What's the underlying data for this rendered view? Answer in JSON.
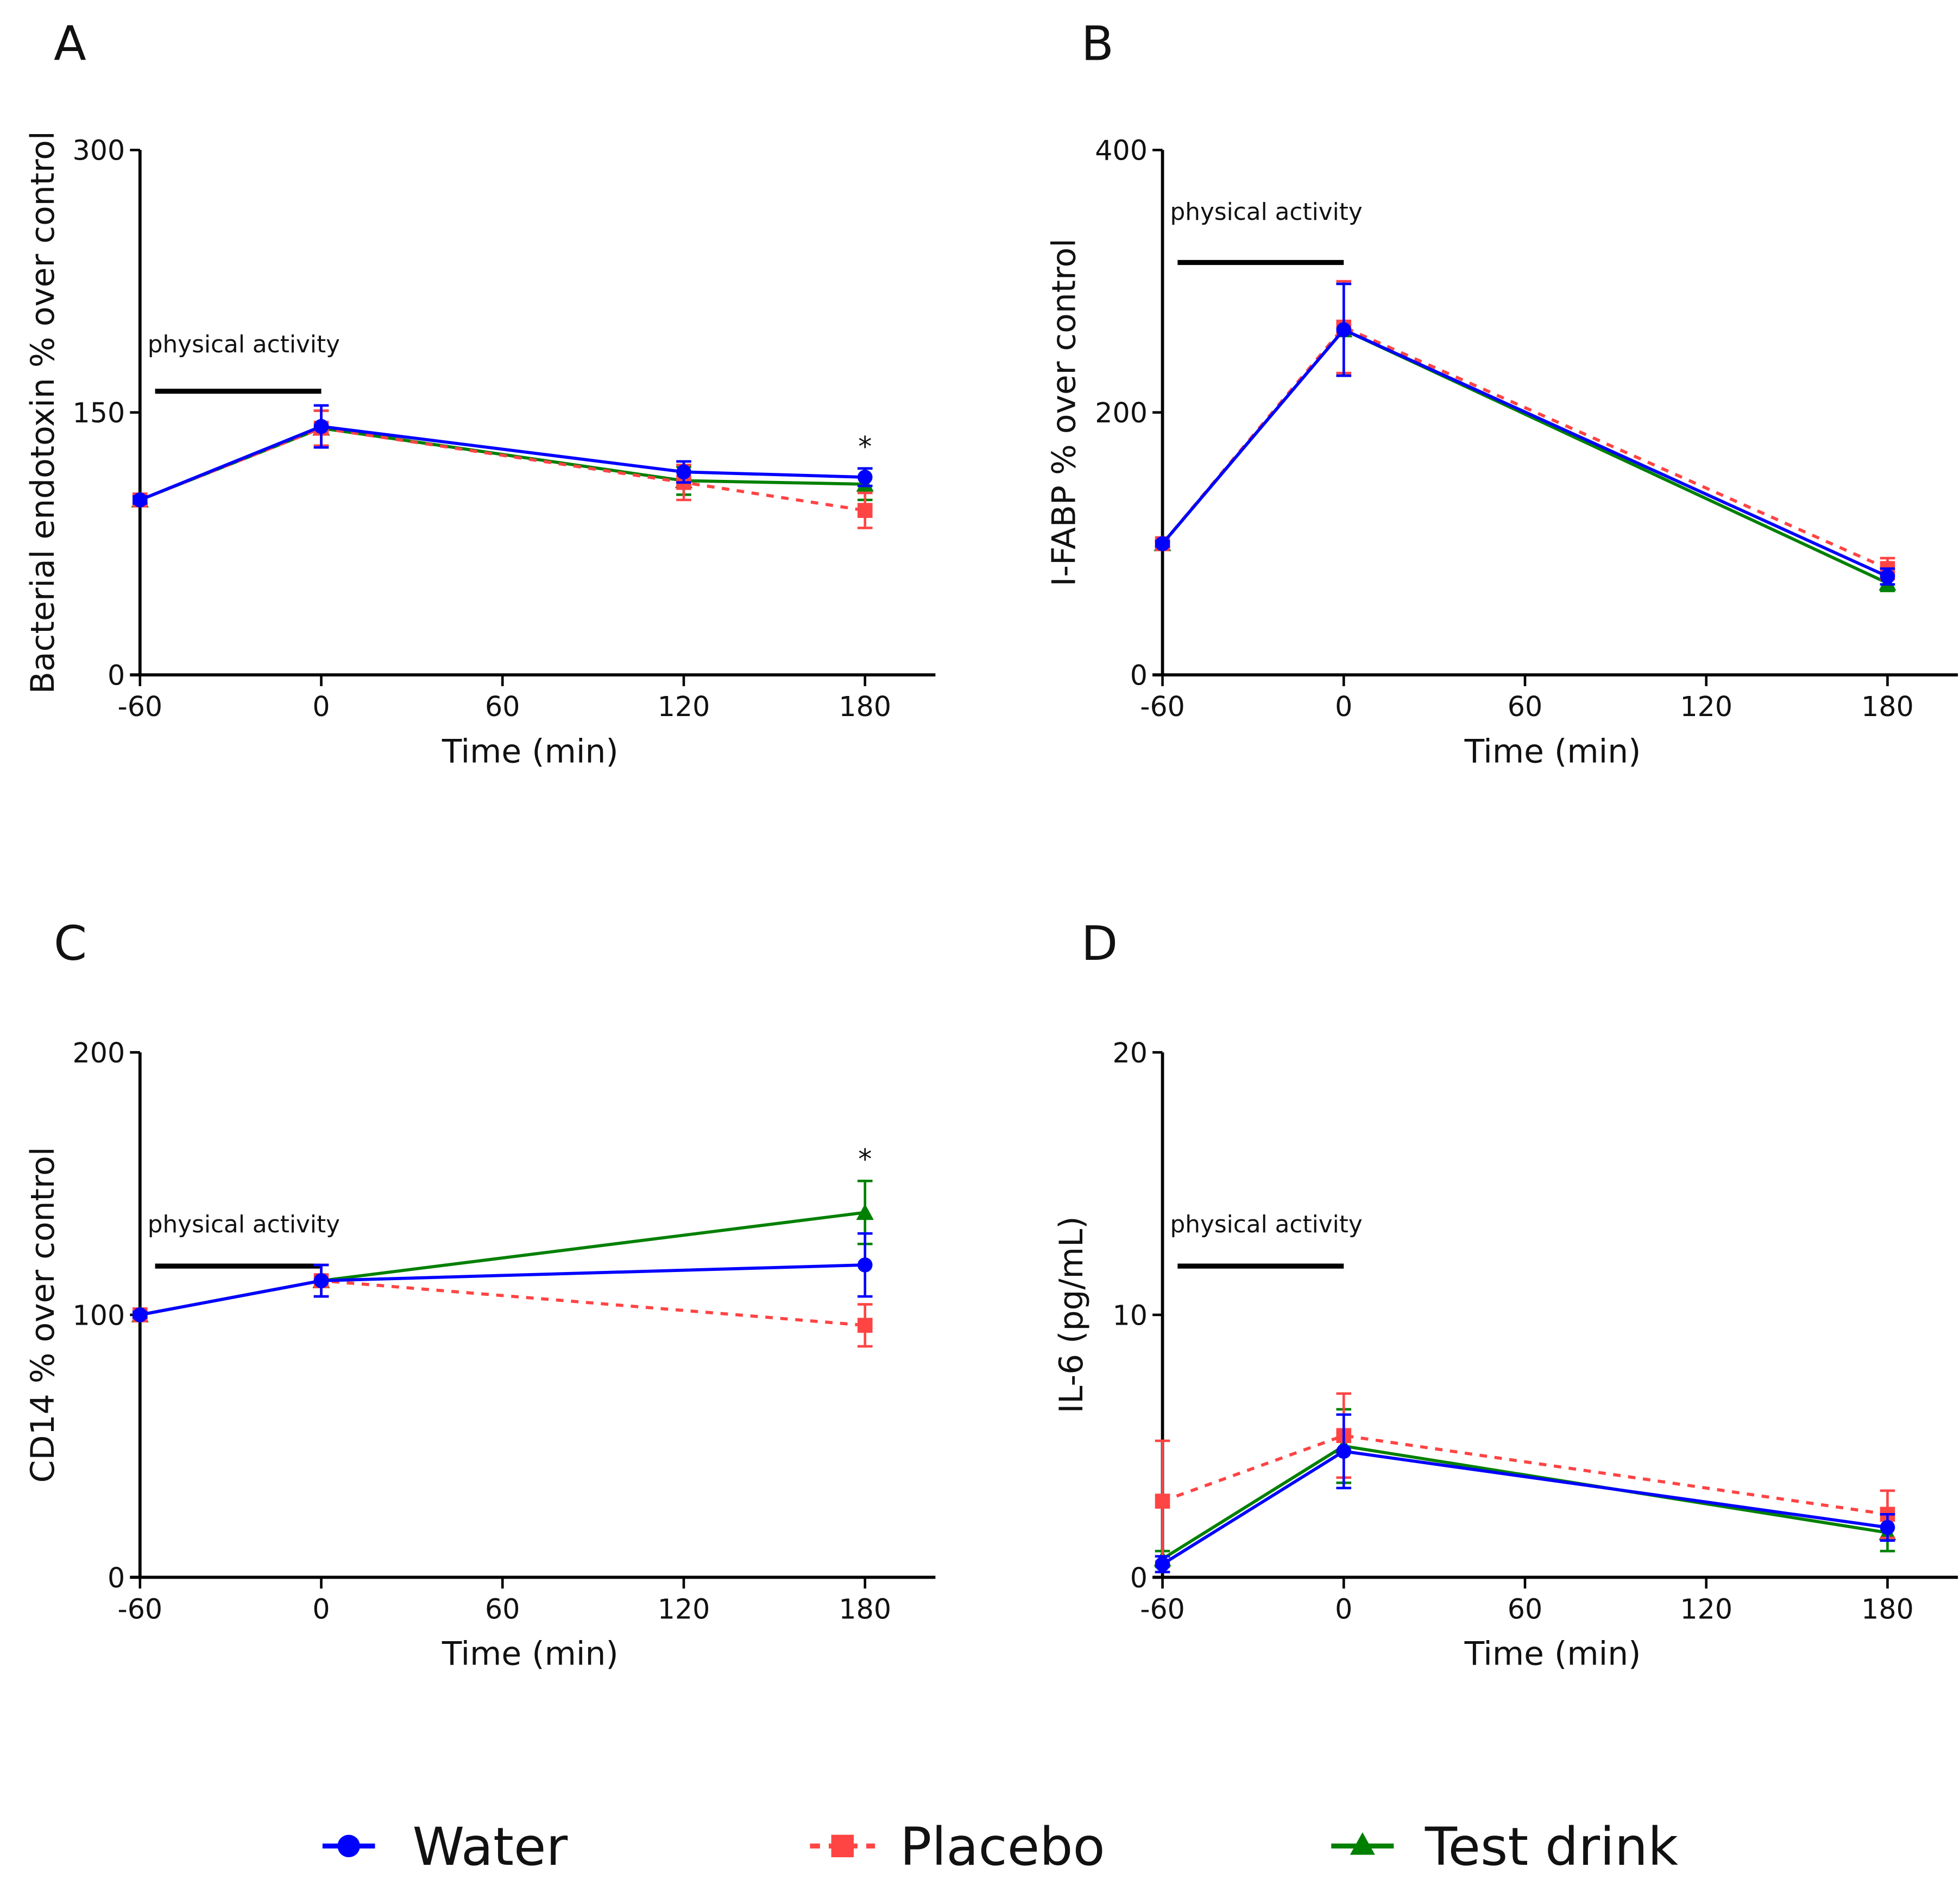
{
  "legend": [
    {
      "name": "Water",
      "color": "#0000ff",
      "marker": "circle",
      "dash": false
    },
    {
      "name": "Placebo",
      "color": "#ff4444",
      "marker": "square",
      "dash": true
    },
    {
      "name": "Test drink",
      "color": "#008000",
      "marker": "triangle",
      "dash": false
    }
  ],
  "chart_data": [
    {
      "panel": "A",
      "type": "line",
      "xlabel": "Time (min)",
      "ylabel": "Bacterial endotoxin % over control",
      "xticks": [
        -60,
        0,
        60,
        120,
        180
      ],
      "yticks": [
        0,
        150,
        300
      ],
      "ylim": [
        0,
        300
      ],
      "xlim": [
        -60,
        200
      ],
      "annotation": "physical activity",
      "annotation_range": [
        -55,
        0
      ],
      "significance": {
        "x": 180,
        "label": "*"
      },
      "x": [
        -60,
        0,
        120,
        180
      ],
      "series": [
        {
          "name": "Water",
          "values": [
            100,
            142,
            116,
            113
          ],
          "errors": [
            2,
            12,
            6,
            5
          ]
        },
        {
          "name": "Placebo",
          "values": [
            100,
            141,
            110,
            94
          ],
          "errors": [
            2,
            10,
            10,
            10
          ]
        },
        {
          "name": "Test drink",
          "values": [
            100,
            141,
            111,
            109
          ],
          "errors": [
            2,
            10,
            8,
            9
          ]
        }
      ]
    },
    {
      "panel": "B",
      "type": "line",
      "xlabel": "Time (min)",
      "ylabel": "I-FABP % over control",
      "xticks": [
        -60,
        0,
        60,
        120,
        180
      ],
      "yticks": [
        0,
        200,
        400
      ],
      "ylim": [
        0,
        400
      ],
      "xlim": [
        -60,
        200
      ],
      "annotation": "physical activity",
      "annotation_range": [
        -55,
        0
      ],
      "x": [
        -60,
        0,
        180
      ],
      "series": [
        {
          "name": "Water",
          "values": [
            100,
            263,
            75
          ],
          "errors": [
            2,
            35,
            6
          ]
        },
        {
          "name": "Placebo",
          "values": [
            100,
            265,
            81
          ],
          "errors": [
            2,
            35,
            8
          ]
        },
        {
          "name": "Test drink",
          "values": [
            100,
            263,
            70
          ],
          "errors": [
            2,
            35,
            6
          ]
        }
      ]
    },
    {
      "panel": "C",
      "type": "line",
      "xlabel": "Time (min)",
      "ylabel": "CD14 % over control",
      "xticks": [
        -60,
        0,
        60,
        120,
        180
      ],
      "yticks": [
        0,
        100,
        200
      ],
      "ylim": [
        0,
        200
      ],
      "xlim": [
        -60,
        200
      ],
      "annotation": "physical activity",
      "annotation_range": [
        -55,
        0
      ],
      "significance": {
        "x": 180,
        "label": "*"
      },
      "x": [
        -60,
        0,
        180
      ],
      "series": [
        {
          "name": "Water",
          "values": [
            100,
            113,
            119
          ],
          "errors": [
            1,
            6,
            12
          ]
        },
        {
          "name": "Placebo",
          "values": [
            100,
            113,
            96
          ],
          "errors": [
            1,
            6,
            8
          ]
        },
        {
          "name": "Test drink",
          "values": [
            100,
            113,
            139
          ],
          "errors": [
            1,
            6,
            12
          ]
        }
      ]
    },
    {
      "panel": "D",
      "type": "line",
      "xlabel": "Time (min)",
      "ylabel": "IL-6 (pg/mL)",
      "xticks": [
        -60,
        0,
        60,
        120,
        180
      ],
      "yticks": [
        0,
        10,
        20
      ],
      "ylim": [
        0,
        20
      ],
      "xlim": [
        -60,
        200
      ],
      "annotation": "physical activity",
      "annotation_range": [
        -55,
        0
      ],
      "x": [
        -60,
        0,
        180
      ],
      "series": [
        {
          "name": "Water",
          "values": [
            0.5,
            4.8,
            1.9
          ],
          "errors": [
            0.3,
            1.4,
            0.5
          ]
        },
        {
          "name": "Placebo",
          "values": [
            2.9,
            5.4,
            2.4
          ],
          "errors": [
            2.3,
            1.6,
            0.9
          ]
        },
        {
          "name": "Test drink",
          "values": [
            0.7,
            5.0,
            1.7
          ],
          "errors": [
            0.3,
            1.4,
            0.7
          ]
        }
      ]
    }
  ]
}
